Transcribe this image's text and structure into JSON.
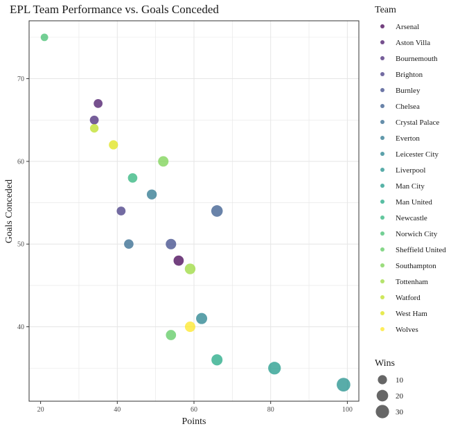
{
  "chart_data": {
    "type": "scatter",
    "title": "EPL Team Performance vs. Goals Conceded",
    "xlabel": "Points",
    "ylabel": "Goals Conceded",
    "xlim": [
      17,
      103
    ],
    "ylim": [
      31,
      77
    ],
    "xticks": [
      20,
      40,
      60,
      80,
      100
    ],
    "yticks": [
      40,
      50,
      60,
      70
    ],
    "grid": true,
    "legend_position": "right",
    "color_legend_title": "Team",
    "size_legend_title": "Wins",
    "size_legend": [
      {
        "label": "10",
        "value": 10
      },
      {
        "label": "20",
        "value": 20
      },
      {
        "label": "30",
        "value": 30
      }
    ],
    "teams": [
      {
        "name": "Arsenal",
        "color": "#440154"
      },
      {
        "name": "Aston Villa",
        "color": "#481668"
      },
      {
        "name": "Bournemouth",
        "color": "#482878"
      },
      {
        "name": "Brighton",
        "color": "#443983"
      },
      {
        "name": "Burnley",
        "color": "#3E4A89"
      },
      {
        "name": "Chelsea",
        "color": "#375A8C"
      },
      {
        "name": "Crystal Palace",
        "color": "#31688E"
      },
      {
        "name": "Everton",
        "color": "#2B758E"
      },
      {
        "name": "Leicester City",
        "color": "#26828E"
      },
      {
        "name": "Liverpool",
        "color": "#21908C"
      },
      {
        "name": "Man City",
        "color": "#1F9A8A"
      },
      {
        "name": "Man United",
        "color": "#22A884"
      },
      {
        "name": "Newcastle",
        "color": "#2FB47C"
      },
      {
        "name": "Norwich City",
        "color": "#44BF70"
      },
      {
        "name": "Sheffield United",
        "color": "#5EC962"
      },
      {
        "name": "Southampton",
        "color": "#7AD151"
      },
      {
        "name": "Tottenham",
        "color": "#9BD93C"
      },
      {
        "name": "Watford",
        "color": "#BDDF26"
      },
      {
        "name": "West Ham",
        "color": "#DFE318"
      },
      {
        "name": "Wolves",
        "color": "#FDE725"
      }
    ],
    "points": [
      {
        "team": "Arsenal",
        "x": 56,
        "y": 48,
        "wins": 14
      },
      {
        "team": "Aston Villa",
        "x": 35,
        "y": 67,
        "wins": 9
      },
      {
        "team": "Bournemouth",
        "x": 34,
        "y": 65,
        "wins": 9
      },
      {
        "team": "Brighton",
        "x": 41,
        "y": 54,
        "wins": 9
      },
      {
        "team": "Burnley",
        "x": 54,
        "y": 50,
        "wins": 15
      },
      {
        "team": "Chelsea",
        "x": 66,
        "y": 54,
        "wins": 20
      },
      {
        "team": "Crystal Palace",
        "x": 43,
        "y": 50,
        "wins": 11
      },
      {
        "team": "Everton",
        "x": 49,
        "y": 56,
        "wins": 13
      },
      {
        "team": "Leicester City",
        "x": 62,
        "y": 41,
        "wins": 18
      },
      {
        "team": "Liverpool",
        "x": 99,
        "y": 33,
        "wins": 32
      },
      {
        "team": "Man City",
        "x": 81,
        "y": 35,
        "wins": 26
      },
      {
        "team": "Man United",
        "x": 66,
        "y": 36,
        "wins": 18
      },
      {
        "team": "Newcastle",
        "x": 44,
        "y": 58,
        "wins": 11
      },
      {
        "team": "Norwich City",
        "x": 21,
        "y": 75,
        "wins": 5
      },
      {
        "team": "Sheffield United",
        "x": 54,
        "y": 39,
        "wins": 14
      },
      {
        "team": "Southampton",
        "x": 52,
        "y": 60,
        "wins": 15
      },
      {
        "team": "Tottenham",
        "x": 59,
        "y": 47,
        "wins": 16
      },
      {
        "team": "Watford",
        "x": 34,
        "y": 64,
        "wins": 8
      },
      {
        "team": "West Ham",
        "x": 39,
        "y": 62,
        "wins": 10
      },
      {
        "team": "Wolves",
        "x": 59,
        "y": 40,
        "wins": 15
      }
    ]
  }
}
